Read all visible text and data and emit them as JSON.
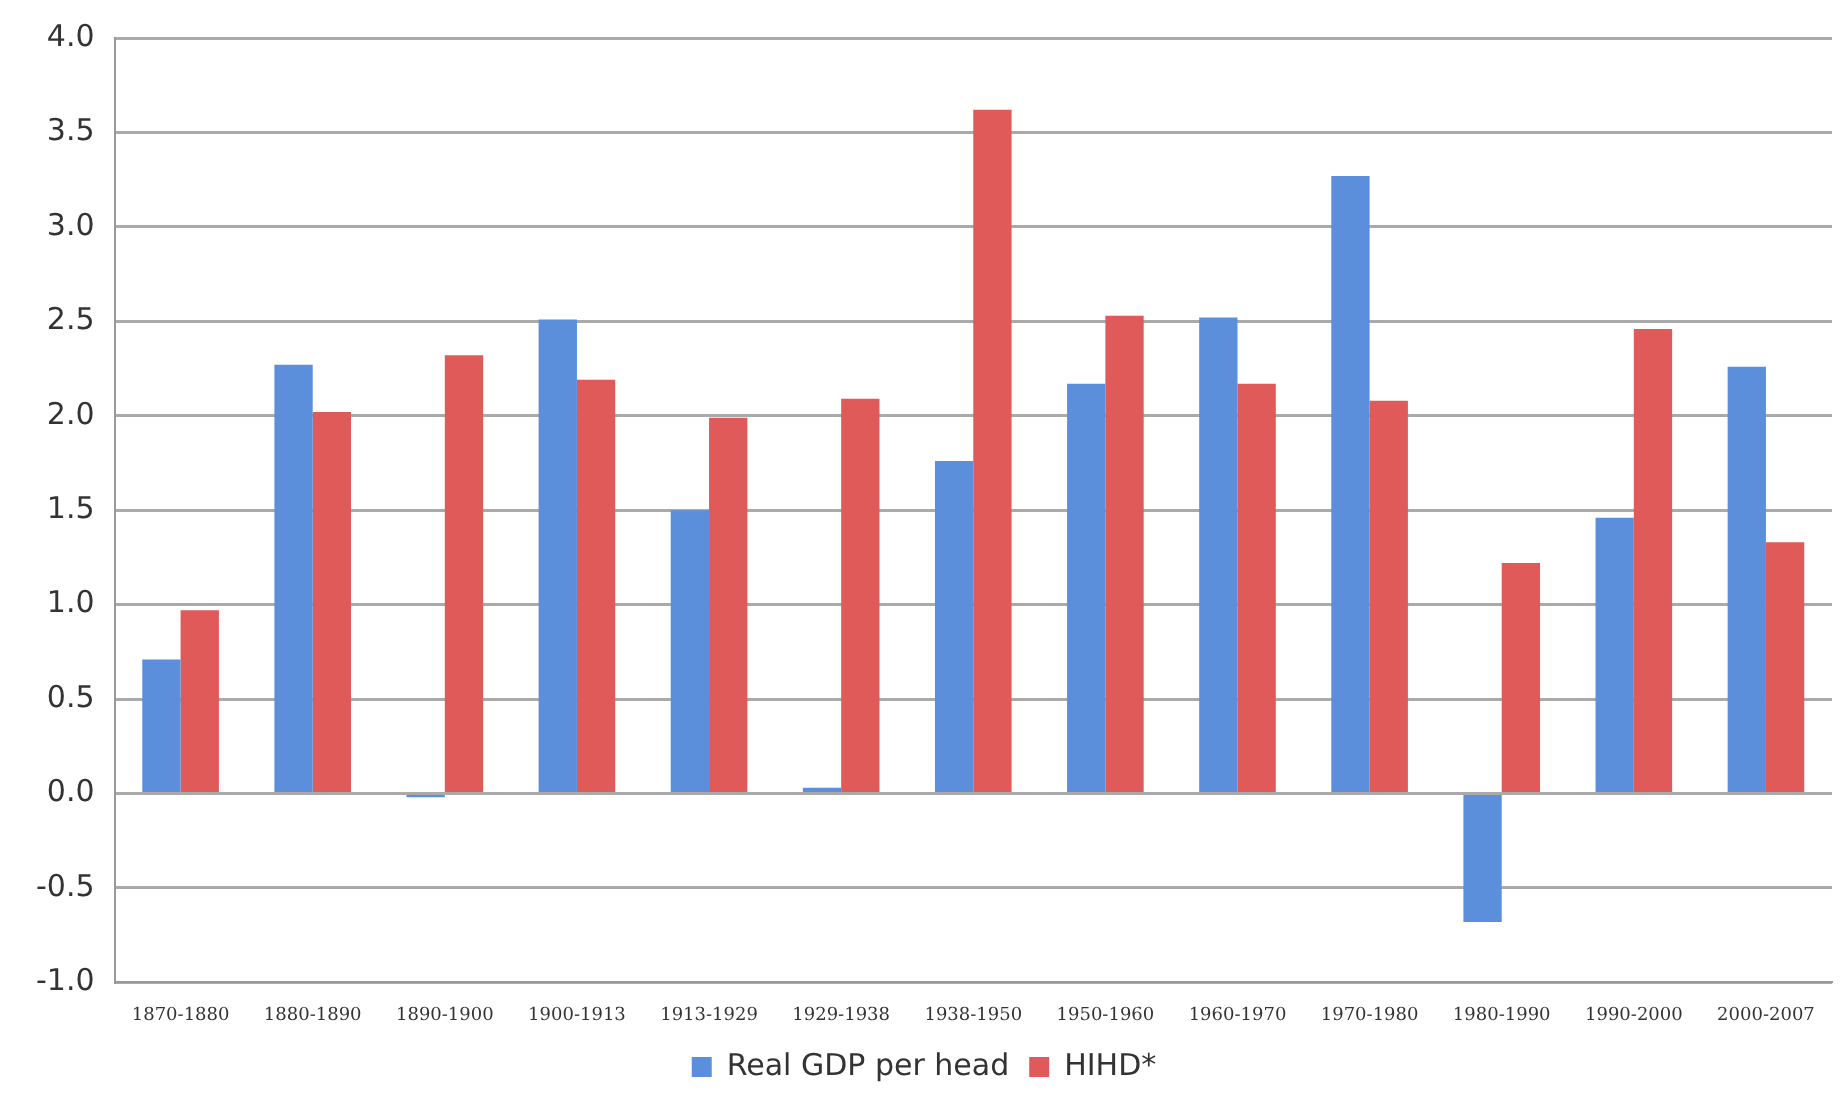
{
  "chart_data": {
    "type": "bar",
    "categories": [
      "1870-1880",
      "1880-1890",
      "1890-1900",
      "1900-1913",
      "1913-1929",
      "1929-1938",
      "1938-1950",
      "1950-1960",
      "1960-1970",
      "1970-1980",
      "1980-1990",
      "1990-2000",
      "2000-2007"
    ],
    "series": [
      {
        "name": "Real GDP per head",
        "color": "#5b8fdc",
        "values": [
          0.71,
          2.27,
          -0.02,
          2.51,
          1.5,
          0.03,
          1.76,
          2.17,
          2.52,
          3.27,
          -0.68,
          1.46,
          2.26
        ]
      },
      {
        "name": "HIHD*",
        "color": "#e05a5a",
        "values": [
          0.97,
          2.02,
          2.32,
          2.19,
          1.99,
          2.09,
          3.62,
          2.53,
          2.17,
          2.08,
          1.22,
          2.46,
          1.33
        ]
      }
    ],
    "ylim": [
      -1,
      4
    ],
    "yticks": [
      {
        "value": -1,
        "label": "-1.0"
      },
      {
        "value": -0.5,
        "label": "-0.5"
      },
      {
        "value": 0,
        "label": "0.0"
      },
      {
        "value": 0.5,
        "label": "0.5"
      },
      {
        "value": 1,
        "label": "1.0"
      },
      {
        "value": 1.5,
        "label": "1.5"
      },
      {
        "value": 2,
        "label": "2.0"
      },
      {
        "value": 2.5,
        "label": "2.5"
      },
      {
        "value": 3,
        "label": "3.0"
      },
      {
        "value": 3.5,
        "label": "3.5"
      },
      {
        "value": 4,
        "label": "4.0"
      }
    ],
    "grid": "y",
    "legend": "bottom"
  }
}
